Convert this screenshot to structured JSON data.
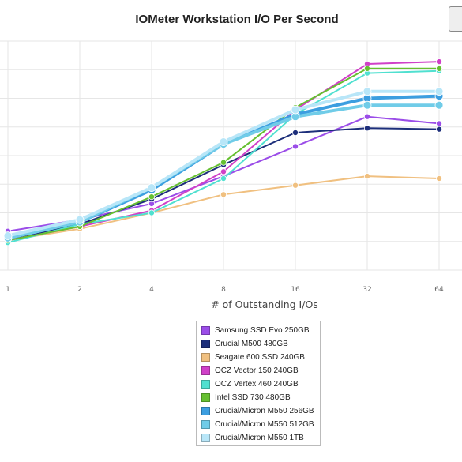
{
  "chart_data": {
    "type": "line",
    "title": "IOMeter Workstation I/O Per Second",
    "xlabel": "# of Outstanding I/Os",
    "ylabel": "",
    "x": [
      1,
      2,
      4,
      8,
      16,
      32,
      64
    ],
    "x_tick_labels": [
      "1",
      "2",
      "4",
      "8",
      "16",
      "32",
      "64"
    ],
    "x_scale": "log2",
    "y_scale_unlabeled": true,
    "ylim": [
      0,
      100
    ],
    "grid": true,
    "legend_position": "bottom-center",
    "series": [
      {
        "name": "Samsung SSD Evo 250GB",
        "color": "#9b4de8",
        "values": [
          17,
          22,
          29,
          41,
          54,
          67,
          64
        ]
      },
      {
        "name": "Crucial M500 480GB",
        "color": "#1c2e7a",
        "values": [
          13,
          20,
          31,
          46,
          60,
          62,
          61.5
        ]
      },
      {
        "name": "Seagate 600 SSD 240GB",
        "color": "#f0c080",
        "values": [
          13,
          18,
          25,
          33,
          37,
          41,
          40
        ]
      },
      {
        "name": "OCZ Vector 150 240GB",
        "color": "#d040c8",
        "values": [
          13,
          19,
          26,
          43,
          70,
          90,
          91
        ]
      },
      {
        "name": "OCZ Vertex 460 240GB",
        "color": "#50e0d0",
        "values": [
          12,
          20,
          25,
          40,
          68,
          86,
          87
        ]
      },
      {
        "name": "Intel SSD 730 480GB",
        "color": "#66c030",
        "values": [
          13,
          19,
          32,
          47,
          71,
          88,
          88
        ]
      },
      {
        "name": "Crucial/Micron M550 256GB",
        "color": "#3c9ee0",
        "values": [
          14,
          21,
          35,
          55,
          68,
          75,
          76
        ]
      },
      {
        "name": "Crucial/Micron M550 512GB",
        "color": "#70cce8",
        "values": [
          14,
          21,
          36,
          55,
          67,
          72,
          72
        ]
      },
      {
        "name": "Crucial/Micron M550 1TB",
        "color": "#b8e6f8",
        "values": [
          15,
          22,
          36,
          56,
          70,
          78,
          78
        ]
      }
    ]
  }
}
